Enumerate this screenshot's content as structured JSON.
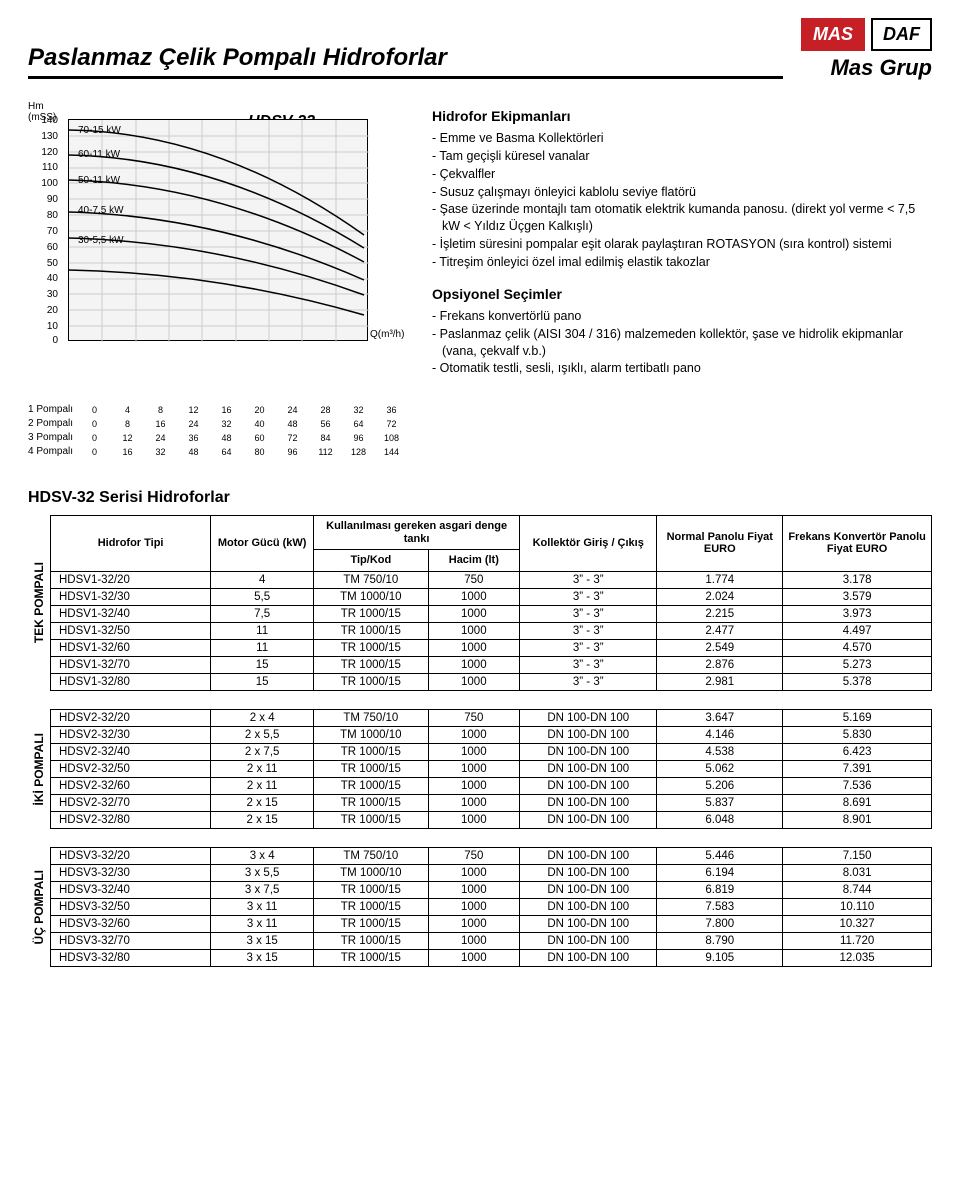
{
  "page": {
    "title": "Paslanmaz Çelik Pompalı Hidroforlar",
    "logos": {
      "mas": "MAS",
      "daf": "DAF",
      "brand": "Mas Grup"
    }
  },
  "chart": {
    "type": "line",
    "title": "HDSV-32",
    "y_title": "Hm\n(mSS)",
    "ylim": [
      0,
      140
    ],
    "ytick_step": 10,
    "background_color": "#f4f4f4",
    "grid_color": "#cccccc",
    "power_labels": [
      "70-15 kW",
      "60-11 kW",
      "50-11 kW",
      "40-7,5 kW",
      "30-5,5 kW"
    ],
    "q_label": "Q(m³/h)",
    "pump_axes": [
      {
        "label": "1 Pompalı",
        "ticks": [
          "0",
          "4",
          "8",
          "12",
          "16",
          "20",
          "24",
          "28",
          "32",
          "36"
        ]
      },
      {
        "label": "2 Pompalı",
        "ticks": [
          "0",
          "8",
          "16",
          "24",
          "32",
          "40",
          "48",
          "56",
          "64",
          "72"
        ]
      },
      {
        "label": "3 Pompalı",
        "ticks": [
          "0",
          "12",
          "24",
          "36",
          "48",
          "60",
          "72",
          "84",
          "96",
          "108"
        ]
      },
      {
        "label": "4 Pompalı",
        "ticks": [
          "0",
          "16",
          "32",
          "48",
          "64",
          "80",
          "96",
          "112",
          "128",
          "144"
        ]
      }
    ]
  },
  "equip": {
    "heading": "Hidrofor Ekipmanları",
    "items": [
      "Emme ve Basma Kollektörleri",
      "Tam geçişli küresel vanalar",
      "Çekvalfler",
      "Susuz çalışmayı önleyici kablolu seviye flatörü",
      "Şase üzerinde montajlı tam otomatik elektrik kumanda panosu. (direkt yol verme < 7,5 kW < Yıldız Üçgen Kalkışlı)",
      "İşletim süresini pompalar eşit olarak paylaştıran ROTASYON (sıra kontrol) sistemi",
      "Titreşim önleyici özel imal edilmiş elastik takozlar"
    ]
  },
  "options": {
    "heading": "Opsiyonel Seçimler",
    "items": [
      "Frekans konvertörlü pano",
      "Paslanmaz çelik (AISI 304 / 316) malzemeden kollektör, şase ve hidrolik ekipmanlar (vana, çekvalf v.b.)",
      "Otomatik testli, sesli, ışıklı, alarm tertibatlı pano"
    ]
  },
  "series_title": "HDSV-32 Serisi Hidroforlar",
  "table_header": {
    "tipi": "Hidrofor Tipi",
    "motor": "Motor Gücü (kW)",
    "tank_top": "Kullanılması gereken asgari denge tankı",
    "tip": "Tip/Kod",
    "hacim": "Hacim (lt)",
    "kollektor": "Kollektör Giriş / Çıkış",
    "normal": "Normal Panolu Fiyat EURO",
    "frekans": "Frekans Konvertör Panolu Fiyat EURO"
  },
  "groups": [
    {
      "label": "TEK POMPALI",
      "rows": [
        [
          "HDSV1-32/20",
          "4",
          "TM 750/10",
          "750",
          "3” - 3”",
          "1.774",
          "3.178"
        ],
        [
          "HDSV1-32/30",
          "5,5",
          "TM 1000/10",
          "1000",
          "3” - 3”",
          "2.024",
          "3.579"
        ],
        [
          "HDSV1-32/40",
          "7,5",
          "TR 1000/15",
          "1000",
          "3” - 3”",
          "2.215",
          "3.973"
        ],
        [
          "HDSV1-32/50",
          "11",
          "TR 1000/15",
          "1000",
          "3” - 3”",
          "2.477",
          "4.497"
        ],
        [
          "HDSV1-32/60",
          "11",
          "TR 1000/15",
          "1000",
          "3” - 3”",
          "2.549",
          "4.570"
        ],
        [
          "HDSV1-32/70",
          "15",
          "TR 1000/15",
          "1000",
          "3” - 3”",
          "2.876",
          "5.273"
        ],
        [
          "HDSV1-32/80",
          "15",
          "TR 1000/15",
          "1000",
          "3” - 3”",
          "2.981",
          "5.378"
        ]
      ]
    },
    {
      "label": "İKİ POMPALI",
      "rows": [
        [
          "HDSV2-32/20",
          "2 x 4",
          "TM 750/10",
          "750",
          "DN 100-DN 100",
          "3.647",
          "5.169"
        ],
        [
          "HDSV2-32/30",
          "2 x 5,5",
          "TM 1000/10",
          "1000",
          "DN 100-DN 100",
          "4.146",
          "5.830"
        ],
        [
          "HDSV2-32/40",
          "2 x 7,5",
          "TR 1000/15",
          "1000",
          "DN 100-DN 100",
          "4.538",
          "6.423"
        ],
        [
          "HDSV2-32/50",
          "2 x 11",
          "TR 1000/15",
          "1000",
          "DN 100-DN 100",
          "5.062",
          "7.391"
        ],
        [
          "HDSV2-32/60",
          "2 x 11",
          "TR 1000/15",
          "1000",
          "DN 100-DN 100",
          "5.206",
          "7.536"
        ],
        [
          "HDSV2-32/70",
          "2 x 15",
          "TR 1000/15",
          "1000",
          "DN 100-DN 100",
          "5.837",
          "8.691"
        ],
        [
          "HDSV2-32/80",
          "2 x 15",
          "TR 1000/15",
          "1000",
          "DN 100-DN 100",
          "6.048",
          "8.901"
        ]
      ]
    },
    {
      "label": "ÜÇ POMPALI",
      "rows": [
        [
          "HDSV3-32/20",
          "3 x 4",
          "TM 750/10",
          "750",
          "DN 100-DN 100",
          "5.446",
          "7.150"
        ],
        [
          "HDSV3-32/30",
          "3 x 5,5",
          "TM 1000/10",
          "1000",
          "DN 100-DN 100",
          "6.194",
          "8.031"
        ],
        [
          "HDSV3-32/40",
          "3 x 7,5",
          "TR 1000/15",
          "1000",
          "DN 100-DN 100",
          "6.819",
          "8.744"
        ],
        [
          "HDSV3-32/50",
          "3 x 11",
          "TR 1000/15",
          "1000",
          "DN 100-DN 100",
          "7.583",
          "10.110"
        ],
        [
          "HDSV3-32/60",
          "3 x 11",
          "TR 1000/15",
          "1000",
          "DN 100-DN 100",
          "7.800",
          "10.327"
        ],
        [
          "HDSV3-32/70",
          "3 x 15",
          "TR 1000/15",
          "1000",
          "DN 100-DN 100",
          "8.790",
          "11.720"
        ],
        [
          "HDSV3-32/80",
          "3 x 15",
          "TR 1000/15",
          "1000",
          "DN 100-DN 100",
          "9.105",
          "12.035"
        ]
      ]
    }
  ]
}
